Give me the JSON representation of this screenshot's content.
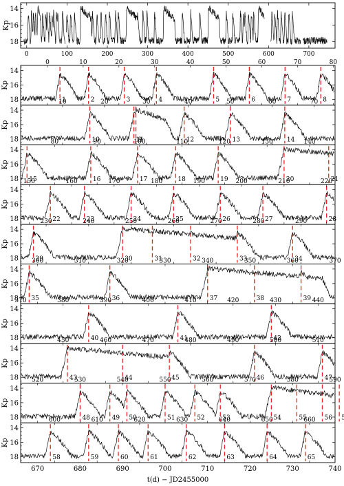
{
  "chart_data": {
    "type": "line",
    "top": {
      "ylabel": "Kp",
      "yticks": [
        14,
        16,
        18
      ],
      "ylim": [
        13.3,
        18.8
      ],
      "xlim": [
        -15,
        765
      ],
      "xticks": [
        0,
        100,
        200,
        300,
        400,
        500,
        600,
        700
      ],
      "gaps": [
        [
          95,
          98
        ],
        [
          590,
          605
        ],
        [
          680,
          686
        ]
      ]
    },
    "ylabel": "Kp",
    "yticks": [
      14,
      16,
      18
    ],
    "ylim": [
      13.3,
      18.8
    ],
    "xlabel": "t(d) − JD2455000",
    "rows": [
      {
        "x0": -7.5,
        "x1": 80.5,
        "xticks": [
          0,
          10,
          20,
          30,
          40,
          50,
          60,
          70,
          80
        ],
        "outbursts": [
          {
            "t": 3.5,
            "n": "1"
          },
          {
            "t": 11.5,
            "n": "2"
          },
          {
            "t": 21.5,
            "n": "3"
          },
          {
            "t": 30.5,
            "n": "4"
          },
          {
            "t": 46.5,
            "n": "5"
          },
          {
            "t": 56.5,
            "n": "6"
          },
          {
            "t": 66.5,
            "n": "7"
          },
          {
            "t": 76.5,
            "n": "8"
          }
        ]
      },
      {
        "x0": 0,
        "x1": 75,
        "xticks": [
          10,
          20,
          30,
          40,
          50,
          60,
          70
        ],
        "outbursts": [
          {
            "t": 27.5,
            "n": "9",
            "long": 1,
            "end": 7
          },
          {
            "t": 16.5,
            "n": "10"
          },
          {
            "t": 27,
            "n": "11"
          },
          {
            "t": 39,
            "n": "12"
          },
          {
            "t": 50,
            "n": "13"
          },
          {
            "t": 63,
            "n": "14"
          }
        ]
      },
      {
        "x0": 72,
        "x1": 146,
        "xticks": [
          80,
          90,
          100,
          110,
          120,
          130,
          140
        ],
        "outbursts": [
          {
            "t": 73.5,
            "n": "15"
          },
          {
            "t": 88.5,
            "n": "16"
          },
          {
            "t": 99.5,
            "n": "17"
          },
          {
            "t": 108.5,
            "n": "18"
          },
          {
            "t": 118.5,
            "n": "19"
          },
          {
            "t": 134,
            "n": "20",
            "long": 1,
            "end": 26
          },
          {
            "t": 144.5,
            "n": "21"
          }
        ]
      },
      {
        "x0": 148,
        "x1": 222,
        "xticks": [
          150,
          160,
          170,
          180,
          190,
          200,
          210,
          220
        ],
        "outbursts": [
          {
            "t": 155,
            "n": "22"
          },
          {
            "t": 163,
            "n": "23"
          },
          {
            "t": 174,
            "n": "24"
          },
          {
            "t": 184,
            "n": "25"
          },
          {
            "t": 195,
            "n": "26"
          },
          {
            "t": 205,
            "n": "27"
          },
          {
            "t": 220,
            "n": "28"
          }
        ]
      },
      {
        "x0": 224,
        "x1": 298,
        "xticks": [
          230,
          240,
          250,
          260,
          270,
          280,
          290
        ],
        "outbursts": [
          {
            "t": 227,
            "n": "29"
          },
          {
            "t": 248,
            "n": "30",
            "long": 1,
            "end": 28
          },
          {
            "t": 255,
            "n": "31"
          },
          {
            "t": 264,
            "n": "32"
          },
          {
            "t": 275,
            "n": "33"
          },
          {
            "t": 288,
            "n": "34"
          }
        ]
      },
      {
        "x0": 296,
        "x1": 370,
        "xticks": [
          300,
          310,
          320,
          330,
          340,
          350,
          360,
          370
        ],
        "outbursts": [
          {
            "t": 298,
            "n": "35"
          },
          {
            "t": 317,
            "n": "36"
          },
          {
            "t": 340,
            "n": "37",
            "long": 1,
            "end": 27
          },
          {
            "t": 351,
            "n": "38"
          },
          {
            "t": 362,
            "n": "39"
          }
        ]
      },
      {
        "x0": 370,
        "x1": 444,
        "xticks": [
          370,
          380,
          390,
          400,
          410,
          420,
          430,
          440
        ],
        "outbursts": [
          {
            "t": 386,
            "n": "40"
          },
          {
            "t": 407,
            "n": "41"
          },
          {
            "t": 429,
            "n": "42"
          }
        ]
      },
      {
        "x0": 440,
        "x1": 514,
        "xticks": [
          450,
          460,
          470,
          480,
          490,
          500,
          510
        ],
        "outbursts": [
          {
            "t": 451,
            "n": "43",
            "long": 1,
            "end": 25
          },
          {
            "t": 464,
            "n": "44"
          },
          {
            "t": 475,
            "n": "45"
          },
          {
            "t": 495,
            "n": "46"
          },
          {
            "t": 511,
            "n": "47"
          }
        ]
      },
      {
        "x0": 516,
        "x1": 590,
        "xticks": [
          520,
          530,
          540,
          550,
          560,
          570,
          580,
          590
        ],
        "outbursts": [
          {
            "t": 530,
            "n": "48"
          },
          {
            "t": 537,
            "n": "49"
          },
          {
            "t": 541,
            "n": "50"
          },
          {
            "t": 550,
            "n": "51"
          },
          {
            "t": 557,
            "n": "52"
          },
          {
            "t": 563,
            "n": "53"
          },
          {
            "t": 575,
            "n": "54",
            "long": 1,
            "end": 18
          },
          {
            "t": 581,
            "n": "55"
          },
          {
            "t": 587,
            "n": "56"
          },
          {
            "t": 591,
            "n": "57"
          }
        ]
      },
      {
        "x0": 592,
        "x1": 666,
        "xticks": [
          600,
          610,
          620,
          630,
          640,
          650,
          660
        ],
        "outbursts": [
          {
            "t": 599,
            "n": "58"
          },
          {
            "t": 608,
            "n": "59"
          },
          {
            "t": 615,
            "n": "60"
          },
          {
            "t": 622,
            "n": "61"
          },
          {
            "t": 631,
            "n": "62"
          },
          {
            "t": 640,
            "n": "63"
          },
          {
            "t": 650,
            "n": "64"
          },
          {
            "t": 659,
            "n": "65"
          }
        ]
      }
    ],
    "bottom_xticks": [
      670,
      680,
      690,
      700,
      710,
      720,
      730,
      740
    ],
    "bottom_xlim": [
      666,
      740
    ]
  }
}
